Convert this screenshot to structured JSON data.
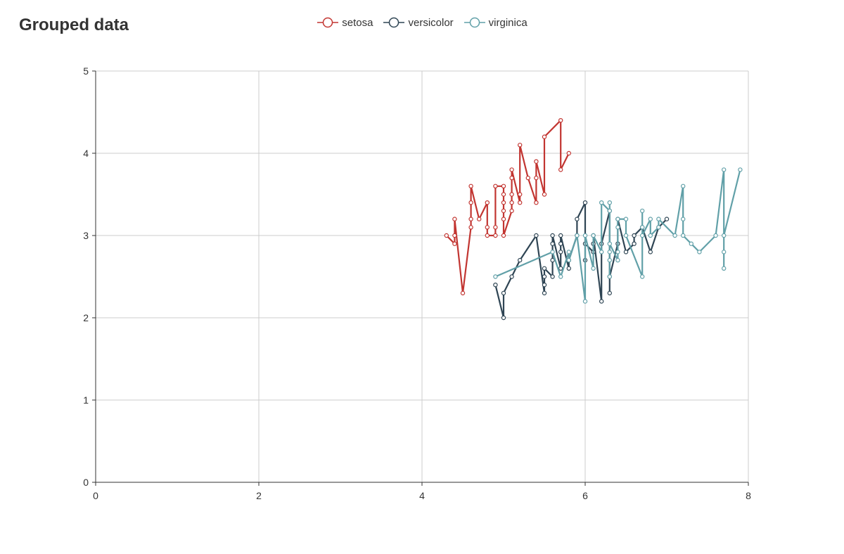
{
  "title": "Grouped data",
  "chart_data": {
    "type": "line",
    "title": "Grouped data",
    "xlabel": "",
    "ylabel": "",
    "xlim": [
      0,
      8
    ],
    "ylim": [
      0,
      5
    ],
    "x_ticks": [
      "0",
      "2",
      "4",
      "6",
      "8"
    ],
    "y_ticks": [
      "0",
      "1",
      "2",
      "3",
      "4",
      "5"
    ],
    "grid": true,
    "legend_position": "top-center",
    "series": [
      {
        "name": "setosa",
        "color": "#c23531",
        "points": [
          [
            4.3,
            3.0
          ],
          [
            4.4,
            2.9
          ],
          [
            4.4,
            3.0
          ],
          [
            4.4,
            3.2
          ],
          [
            4.5,
            2.3
          ],
          [
            4.6,
            3.1
          ],
          [
            4.6,
            3.2
          ],
          [
            4.6,
            3.4
          ],
          [
            4.6,
            3.6
          ],
          [
            4.7,
            3.2
          ],
          [
            4.8,
            3.4
          ],
          [
            4.8,
            3.1
          ],
          [
            4.8,
            3.0
          ],
          [
            4.9,
            3.0
          ],
          [
            4.9,
            3.1
          ],
          [
            4.9,
            3.6
          ],
          [
            5.0,
            3.6
          ],
          [
            5.0,
            3.5
          ],
          [
            5.0,
            3.4
          ],
          [
            5.0,
            3.3
          ],
          [
            5.0,
            3.2
          ],
          [
            5.0,
            3.0
          ],
          [
            5.1,
            3.3
          ],
          [
            5.1,
            3.4
          ],
          [
            5.1,
            3.5
          ],
          [
            5.1,
            3.7
          ],
          [
            5.1,
            3.8
          ],
          [
            5.2,
            3.4
          ],
          [
            5.2,
            3.5
          ],
          [
            5.2,
            4.1
          ],
          [
            5.3,
            3.7
          ],
          [
            5.4,
            3.4
          ],
          [
            5.4,
            3.7
          ],
          [
            5.4,
            3.9
          ],
          [
            5.5,
            3.5
          ],
          [
            5.5,
            4.2
          ],
          [
            5.7,
            4.4
          ],
          [
            5.7,
            3.8
          ],
          [
            5.8,
            4.0
          ]
        ]
      },
      {
        "name": "versicolor",
        "color": "#2f4554",
        "points": [
          [
            4.9,
            2.4
          ],
          [
            5.0,
            2.0
          ],
          [
            5.0,
            2.3
          ],
          [
            5.1,
            2.5
          ],
          [
            5.2,
            2.7
          ],
          [
            5.4,
            3.0
          ],
          [
            5.5,
            2.3
          ],
          [
            5.5,
            2.4
          ],
          [
            5.5,
            2.5
          ],
          [
            5.5,
            2.6
          ],
          [
            5.6,
            2.5
          ],
          [
            5.6,
            2.7
          ],
          [
            5.6,
            2.9
          ],
          [
            5.6,
            3.0
          ],
          [
            5.7,
            2.6
          ],
          [
            5.7,
            2.8
          ],
          [
            5.7,
            2.9
          ],
          [
            5.7,
            3.0
          ],
          [
            5.8,
            2.6
          ],
          [
            5.8,
            2.7
          ],
          [
            5.9,
            3.0
          ],
          [
            5.9,
            3.2
          ],
          [
            6.0,
            3.4
          ],
          [
            6.0,
            2.7
          ],
          [
            6.0,
            2.9
          ],
          [
            6.1,
            2.8
          ],
          [
            6.1,
            2.9
          ],
          [
            6.1,
            3.0
          ],
          [
            6.2,
            2.2
          ],
          [
            6.2,
            2.9
          ],
          [
            6.3,
            3.3
          ],
          [
            6.3,
            2.3
          ],
          [
            6.3,
            2.5
          ],
          [
            6.4,
            2.9
          ],
          [
            6.4,
            3.2
          ],
          [
            6.5,
            2.8
          ],
          [
            6.6,
            2.9
          ],
          [
            6.6,
            3.0
          ],
          [
            6.7,
            3.1
          ],
          [
            6.8,
            2.8
          ],
          [
            6.9,
            3.1
          ],
          [
            7.0,
            3.2
          ]
        ]
      },
      {
        "name": "virginica",
        "color": "#61a0a8",
        "points": [
          [
            4.9,
            2.5
          ],
          [
            5.6,
            2.8
          ],
          [
            5.7,
            2.5
          ],
          [
            5.8,
            2.8
          ],
          [
            5.8,
            2.7
          ],
          [
            5.9,
            3.0
          ],
          [
            6.0,
            2.2
          ],
          [
            6.0,
            3.0
          ],
          [
            6.1,
            2.6
          ],
          [
            6.1,
            3.0
          ],
          [
            6.2,
            2.8
          ],
          [
            6.2,
            3.4
          ],
          [
            6.3,
            3.3
          ],
          [
            6.3,
            3.4
          ],
          [
            6.3,
            2.5
          ],
          [
            6.3,
            2.7
          ],
          [
            6.3,
            2.8
          ],
          [
            6.3,
            2.9
          ],
          [
            6.4,
            2.7
          ],
          [
            6.4,
            2.8
          ],
          [
            6.4,
            3.1
          ],
          [
            6.4,
            3.2
          ],
          [
            6.5,
            3.2
          ],
          [
            6.5,
            3.0
          ],
          [
            6.7,
            2.5
          ],
          [
            6.7,
            3.3
          ],
          [
            6.7,
            3.1
          ],
          [
            6.7,
            3.0
          ],
          [
            6.8,
            3.2
          ],
          [
            6.8,
            3.0
          ],
          [
            6.9,
            3.1
          ],
          [
            6.9,
            3.2
          ],
          [
            7.1,
            3.0
          ],
          [
            7.2,
            3.6
          ],
          [
            7.2,
            3.2
          ],
          [
            7.2,
            3.0
          ],
          [
            7.3,
            2.9
          ],
          [
            7.4,
            2.8
          ],
          [
            7.6,
            3.0
          ],
          [
            7.7,
            3.8
          ],
          [
            7.7,
            2.6
          ],
          [
            7.7,
            2.8
          ],
          [
            7.7,
            3.0
          ],
          [
            7.9,
            3.8
          ]
        ]
      }
    ]
  }
}
